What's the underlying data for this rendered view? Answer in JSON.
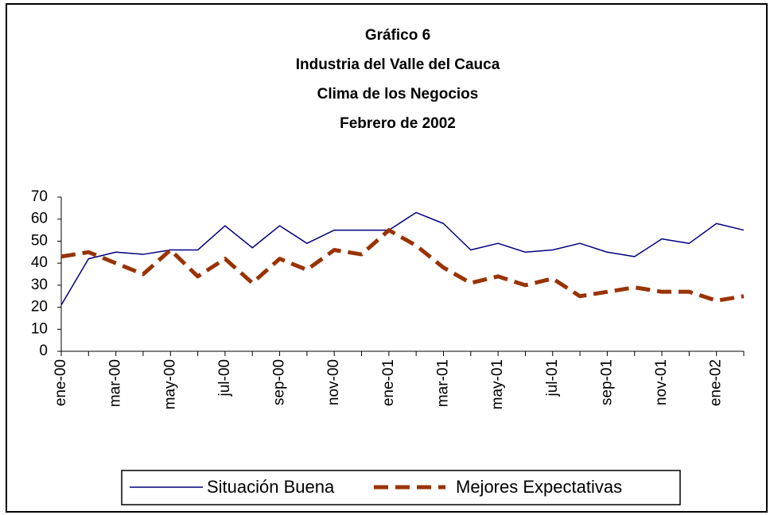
{
  "chart_data": {
    "type": "line",
    "title": [
      "Gráfico 6",
      "Industria del Valle del Cauca",
      "Clima de los Negocios",
      "Febrero de 2002"
    ],
    "categories": [
      "ene-00",
      null,
      "mar-00",
      null,
      "may-00",
      null,
      "jul-00",
      null,
      "sep-00",
      null,
      "nov-00",
      null,
      "ene-01",
      null,
      "mar-01",
      null,
      "may-01",
      null,
      "jul-01",
      null,
      "sep-01",
      null,
      "nov-01",
      null,
      "ene-02",
      null
    ],
    "series": [
      {
        "name": "Situación Buena",
        "color": "#000080",
        "dash": false,
        "values": [
          21,
          42,
          45,
          44,
          46,
          46,
          57,
          47,
          57,
          49,
          55,
          55,
          55,
          63,
          58,
          46,
          49,
          45,
          46,
          49,
          45,
          43,
          51,
          49,
          58,
          55
        ]
      },
      {
        "name": "Mejores Expectativas",
        "color": "#993300",
        "dash": true,
        "values": [
          43,
          45,
          40,
          35,
          46,
          34,
          42,
          31,
          42,
          37,
          46,
          44,
          55,
          48,
          38,
          31,
          34,
          30,
          33,
          25,
          27,
          29,
          27,
          27,
          23,
          25
        ]
      }
    ],
    "ylim": [
      0,
      70
    ],
    "yticks": [
      0,
      10,
      20,
      30,
      40,
      50,
      60,
      70
    ],
    "legend": "bottom"
  }
}
